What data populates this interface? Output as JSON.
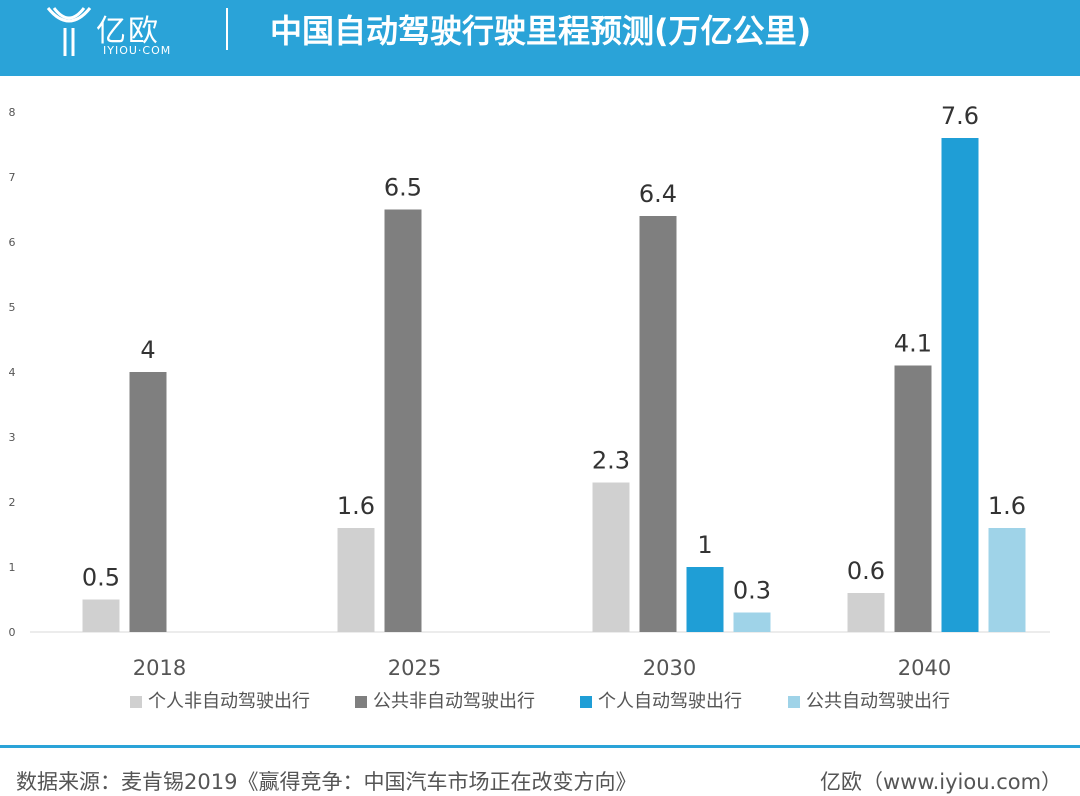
{
  "header": {
    "brand_name": "亿欧",
    "brand_domain": "IYIOU·COM",
    "title": "中国自动驾驶行驶里程预测(万亿公里)",
    "background_color": "#2aa3d8"
  },
  "chart_data": {
    "type": "bar",
    "title": "中国自动驾驶行驶里程预测(万亿公里)",
    "xlabel": "",
    "ylabel": "",
    "ylim": [
      0,
      8
    ],
    "yticks": [
      0,
      1,
      2,
      3,
      4,
      5,
      6,
      7,
      8
    ],
    "grid": false,
    "legend_position": "bottom",
    "categories": [
      "2018",
      "2025",
      "2030",
      "2040"
    ],
    "series": [
      {
        "name": "个人非自动驾驶出行",
        "color": "#d0d0d0",
        "values": [
          0.5,
          1.6,
          2.3,
          0.6
        ]
      },
      {
        "name": "公共非自动驾驶出行",
        "color": "#7f7f7f",
        "values": [
          4,
          6.5,
          6.4,
          4.1
        ]
      },
      {
        "name": "个人自动驾驶出行",
        "color": "#1f9ed6",
        "values": [
          null,
          null,
          1,
          7.6
        ]
      },
      {
        "name": "公共自动驾驶出行",
        "color": "#9fd3e8",
        "values": [
          null,
          null,
          0.3,
          1.6
        ]
      }
    ]
  },
  "footer": {
    "source": "数据来源：麦肯锡2019《赢得竞争：中国汽车市场正在改变方向》",
    "brand": "亿欧（www.iyiou.com）"
  }
}
